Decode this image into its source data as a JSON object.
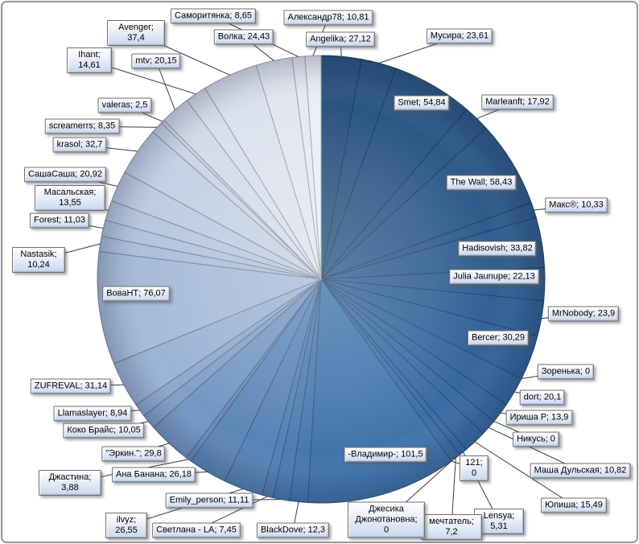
{
  "chart_data": {
    "type": "pie",
    "title": "",
    "legend_position": "none",
    "direction": "clockwise",
    "start_angle_deg": 0,
    "label_format": "{name}; {value}",
    "decimal_separator": ",",
    "series": [
      {
        "name": "Angelika",
        "value": 27.12
      },
      {
        "name": "Мусира",
        "value": 23.61
      },
      {
        "name": "Smet",
        "value": 54.84
      },
      {
        "name": "Marleanft",
        "value": 17.92
      },
      {
        "name": "The Wall",
        "value": 58.43
      },
      {
        "name": "Макс®",
        "value": 10.33
      },
      {
        "name": "Hadisovish",
        "value": 33.82
      },
      {
        "name": "Julia Jaunupe",
        "value": 22.13
      },
      {
        "name": "MrNobody",
        "value": 23.9
      },
      {
        "name": "Bercer",
        "value": 30.29
      },
      {
        "name": "Зоренька",
        "value": 0
      },
      {
        "name": "dort",
        "value": 20.1
      },
      {
        "name": "Ириша Р",
        "value": 13.9
      },
      {
        "name": "Никусь",
        "value": 0
      },
      {
        "name": "Маша Дульская",
        "value": 10.82
      },
      {
        "name": "Юпиша",
        "value": 15.49
      },
      {
        "name": "Lensya",
        "value": 5.31
      },
      {
        "name": "мечтатель",
        "value": 7.2
      },
      {
        "name": "Джесика Джонотановна",
        "value": 0
      },
      {
        "name": "121",
        "value": 0
      },
      {
        "name": "-Владимир-",
        "value": 101.5
      },
      {
        "name": "BlackDove",
        "value": 12.3
      },
      {
        "name": "Emily_person",
        "value": 11.11
      },
      {
        "name": "Светлана - LA",
        "value": 7.45
      },
      {
        "name": "ilvyz",
        "value": 26.55
      },
      {
        "name": "Ана Банана",
        "value": 26.18
      },
      {
        "name": "Джастина",
        "value": 3.88
      },
      {
        "name": "\"Эркин.\"",
        "value": 29.8
      },
      {
        "name": "Коко Брайс",
        "value": 10.05
      },
      {
        "name": "Llamaslayer",
        "value": 8.94
      },
      {
        "name": "ZUFREVAL",
        "value": 31.14
      },
      {
        "name": "ВоваНТ",
        "value": 76.07
      },
      {
        "name": "Nastasik",
        "value": 10.24
      },
      {
        "name": "Forest",
        "value": 11.03
      },
      {
        "name": "Масальская",
        "value": 13.55
      },
      {
        "name": "СашаСаша",
        "value": 20.92
      },
      {
        "name": "krasol",
        "value": 32.7
      },
      {
        "name": "screamerrs",
        "value": 8.35
      },
      {
        "name": "valeras",
        "value": 2.5
      },
      {
        "name": "mtv",
        "value": 20.15
      },
      {
        "name": "Ihant",
        "value": 14.61
      },
      {
        "name": "Avenger",
        "value": 37.4
      },
      {
        "name": "Волка",
        "value": 24.43
      },
      {
        "name": "Саморитянка",
        "value": 8.65
      },
      {
        "name": "Александр78",
        "value": 10.81
      }
    ],
    "colors": {
      "palette_gradient_stops": [
        [
          0.0,
          "#2A547F"
        ],
        [
          0.22,
          "#33649B"
        ],
        [
          0.45,
          "#3F74AC"
        ],
        [
          0.58,
          "#6189B9"
        ],
        [
          0.7,
          "#A6BAD8"
        ],
        [
          0.84,
          "#CBD5E6"
        ],
        [
          1.0,
          "#EBEEF4"
        ]
      ],
      "leader_line": "#3B3B3B",
      "label_box_fill_top": "#FFFFFF",
      "label_box_fill_bottom": "#C9D7EE",
      "label_box_border": "#6F6F6F",
      "label_text": "#000000",
      "frame_border": "#979797"
    }
  }
}
